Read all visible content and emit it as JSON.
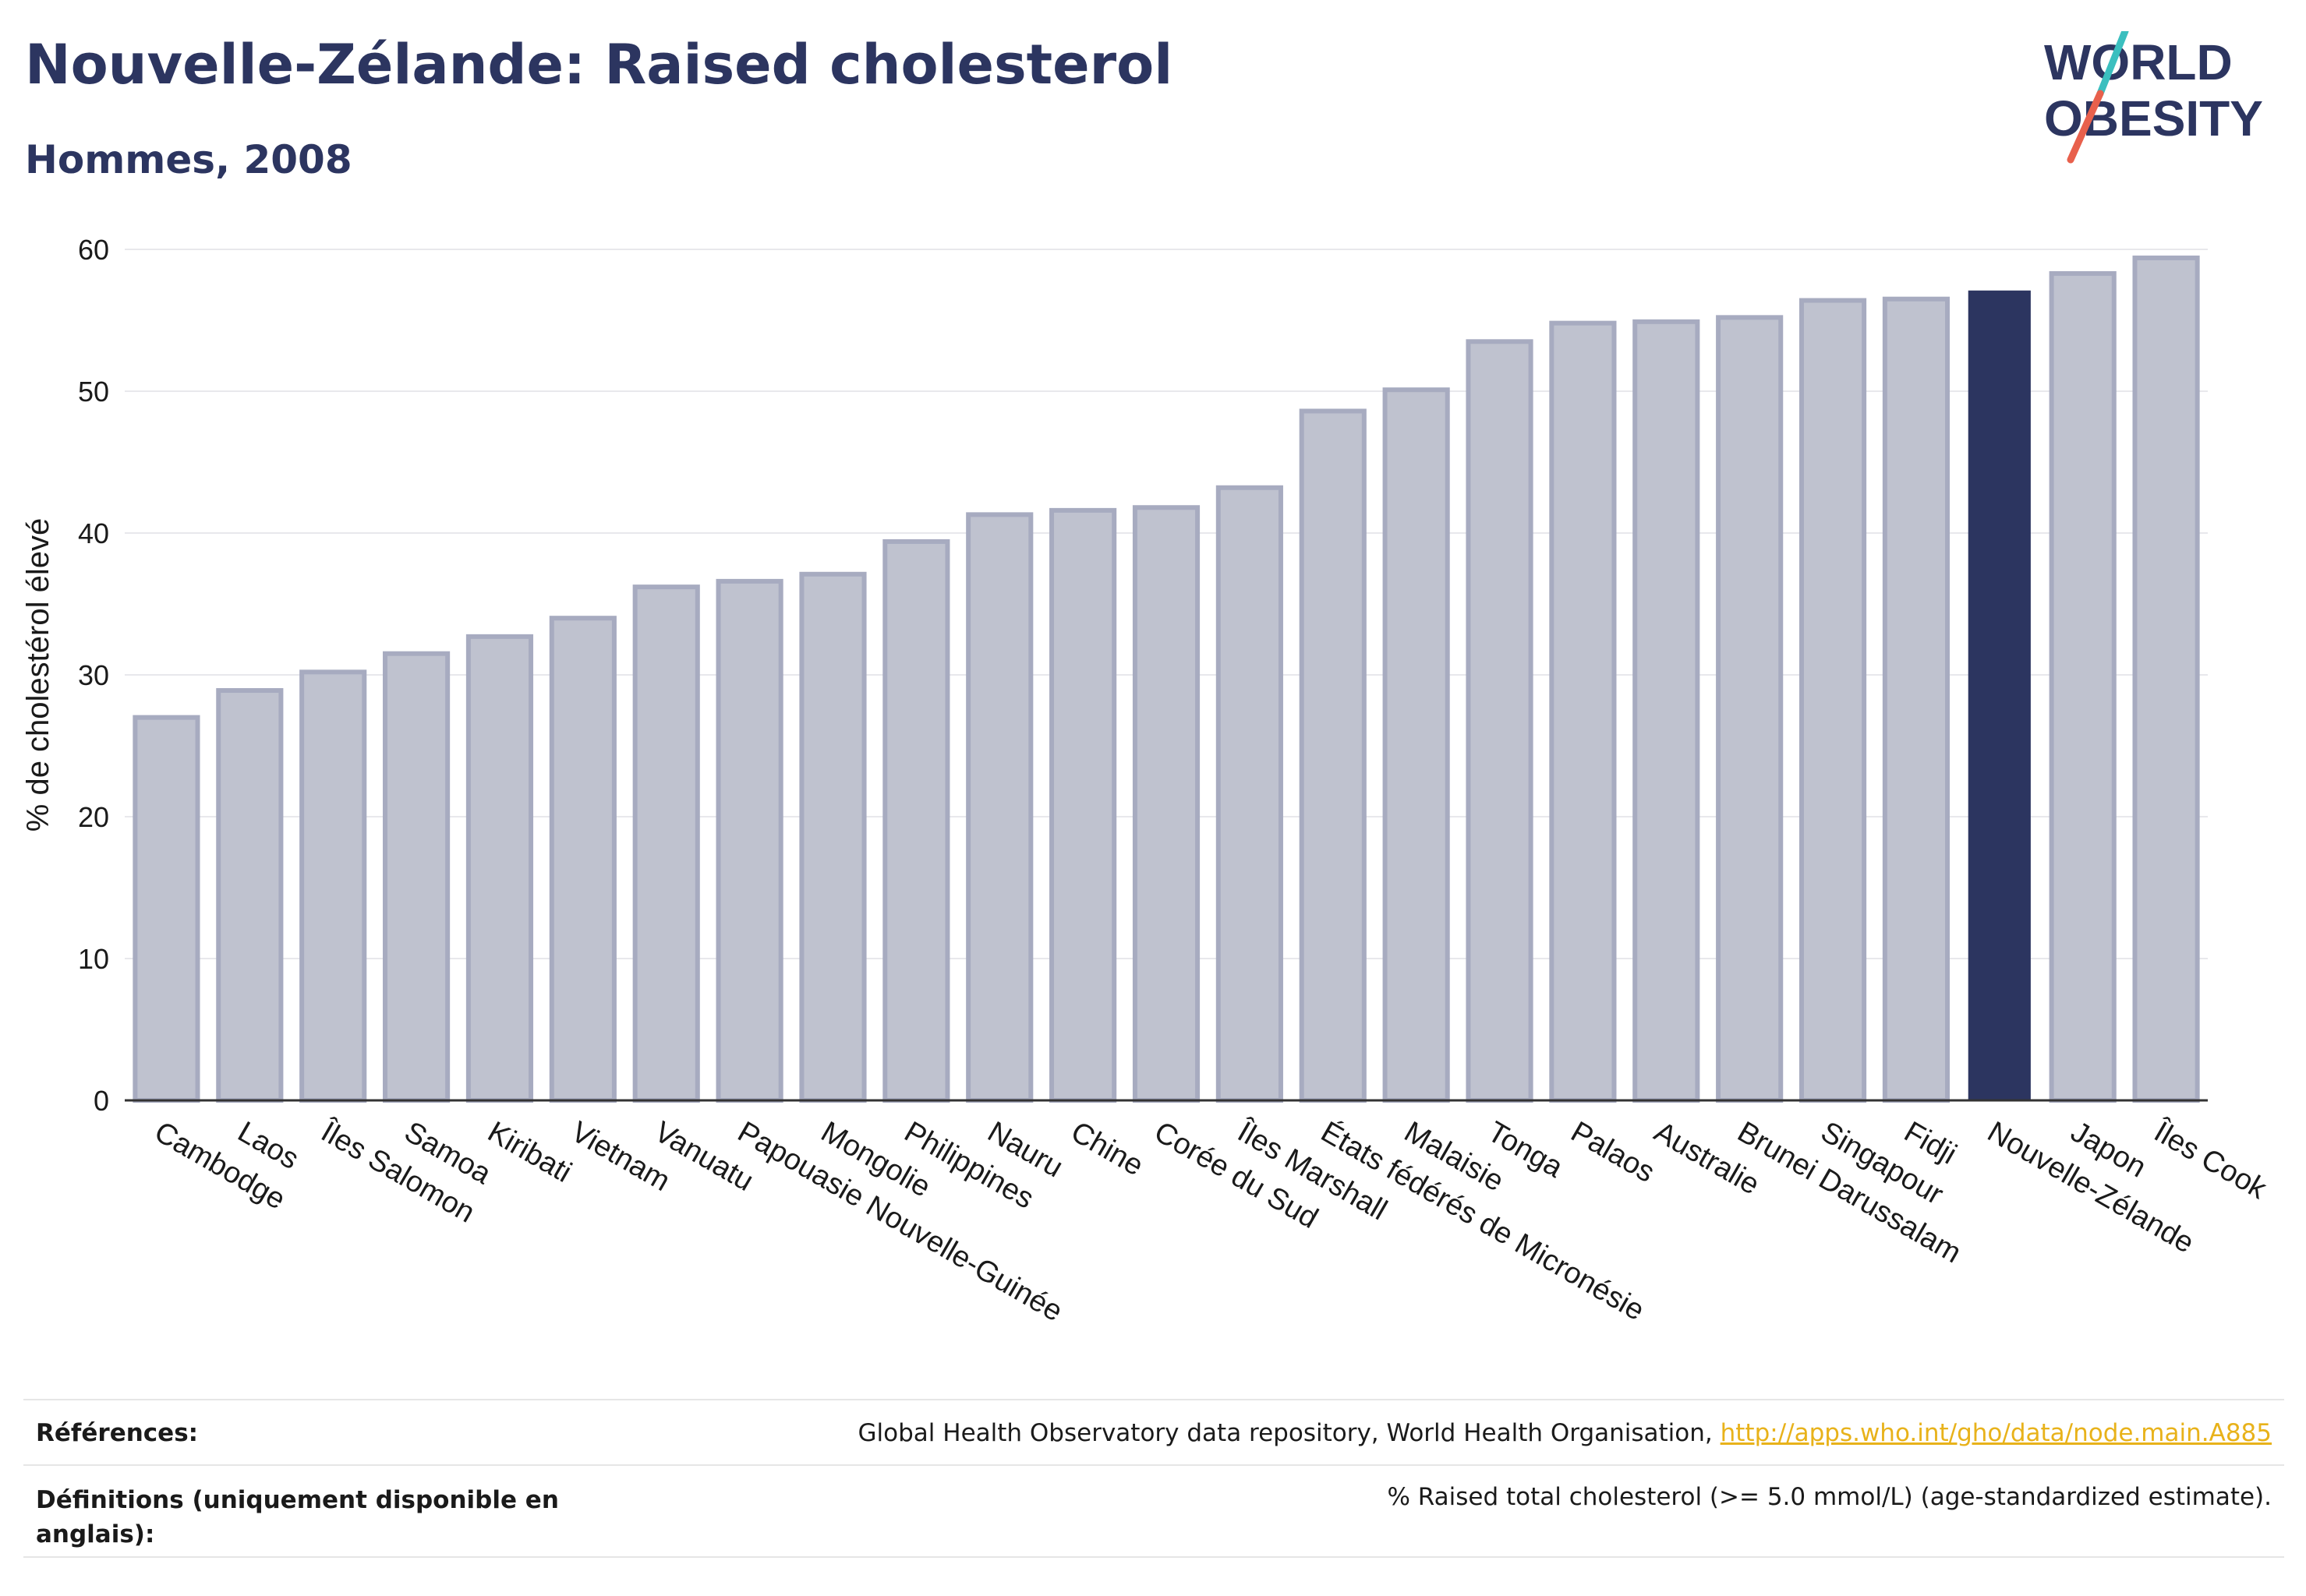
{
  "header": {
    "title": "Nouvelle-Zélande: Raised cholesterol",
    "subtitle": "Hommes, 2008"
  },
  "logo": {
    "line1": "WORLD",
    "line2": "OBESITY",
    "colors": {
      "text": "#2c3560",
      "slash_teal": "#3bbfbf",
      "slash_red": "#e8604c"
    }
  },
  "colors": {
    "bar_fill": "#bfc2cf",
    "bar_stroke": "#a7abc0",
    "highlight": "#2c3560",
    "grid": "#e8e8ec",
    "axis": "#333333"
  },
  "chart_data": {
    "type": "bar",
    "title": "Nouvelle-Zélande: Raised cholesterol",
    "subtitle": "Hommes, 2008",
    "ylabel": "% de cholestérol élevé",
    "xlabel": "",
    "ylim": [
      0,
      60
    ],
    "yticks": [
      0,
      10,
      20,
      30,
      40,
      50,
      60
    ],
    "grid": true,
    "highlight": "Nouvelle-Zélande",
    "categories": [
      "Cambodge",
      "Laos",
      "Îles Salomon",
      "Samoa",
      "Kiribati",
      "Vietnam",
      "Vanuatu",
      "Papouasie Nouvelle-Guinée",
      "Mongolie",
      "Philippines",
      "Nauru",
      "Chine",
      "Corée du Sud",
      "Îles Marshall",
      "États fédérés de Micronésie",
      "Malaisie",
      "Tonga",
      "Palaos",
      "Australie",
      "Brunei Darussalam",
      "Singapour",
      "Fidji",
      "Nouvelle-Zélande",
      "Japon",
      "Îles Cook"
    ],
    "values": [
      27.0,
      28.9,
      30.2,
      31.5,
      32.7,
      34.0,
      36.2,
      36.6,
      37.1,
      39.4,
      41.3,
      41.6,
      41.8,
      43.2,
      48.6,
      50.1,
      53.5,
      54.8,
      54.9,
      55.2,
      56.4,
      56.5,
      57.1,
      58.3,
      59.4
    ]
  },
  "footer": {
    "references_label": "Références:",
    "references_text": "Global Health Observatory data repository, World Health Organisation, ",
    "references_link": "http://apps.who.int/gho/data/node.main.A885",
    "definitions_label": "Définitions (uniquement disponible en anglais):",
    "definitions_text": "% Raised total cholesterol (>= 5.0 mmol/L) (age-standardized estimate)."
  }
}
